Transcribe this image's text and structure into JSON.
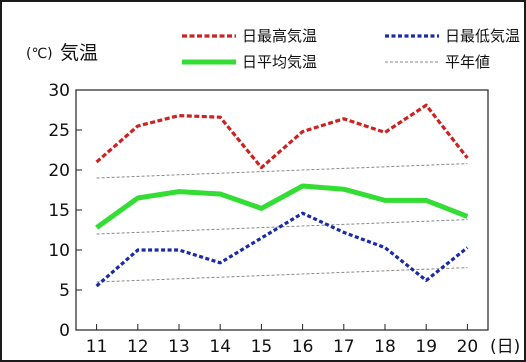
{
  "chart_data": {
    "type": "line",
    "unit_label": "(℃)",
    "ylabel": "気温",
    "x_unit": "(日)",
    "categories": [
      "11",
      "12",
      "13",
      "14",
      "15",
      "16",
      "17",
      "18",
      "19",
      "20"
    ],
    "ylim": [
      0,
      30
    ],
    "yticks": [
      "0",
      "5",
      "10",
      "15",
      "20",
      "25",
      "30"
    ],
    "legend_position": "top",
    "series": [
      {
        "name": "日最高気温",
        "color": "#cc2222",
        "style": "dashed",
        "values": [
          21.0,
          25.5,
          26.8,
          26.6,
          20.3,
          24.8,
          26.4,
          24.7,
          28.1,
          21.5
        ]
      },
      {
        "name": "日最低気温",
        "color": "#1a2aa8",
        "style": "dotted",
        "values": [
          5.5,
          10.0,
          10.0,
          8.4,
          11.5,
          14.6,
          12.2,
          10.3,
          6.2,
          10.3
        ]
      },
      {
        "name": "日平均気温",
        "color": "#33dd33",
        "style": "solid",
        "values": [
          12.8,
          16.5,
          17.3,
          17.0,
          15.2,
          18.0,
          17.6,
          16.2,
          16.2,
          14.2
        ]
      },
      {
        "name": "平年値",
        "color": "#888888",
        "style": "thin-dashed",
        "values_high": [
          19.0,
          19.2,
          19.4,
          19.6,
          19.8,
          20.0,
          20.2,
          20.4,
          20.6,
          20.8
        ],
        "values_avg": [
          12.0,
          12.2,
          12.4,
          12.6,
          12.8,
          13.0,
          13.2,
          13.4,
          13.6,
          13.8
        ],
        "values_low": [
          6.0,
          6.2,
          6.4,
          6.6,
          6.8,
          7.0,
          7.2,
          7.4,
          7.6,
          7.8
        ]
      }
    ]
  }
}
